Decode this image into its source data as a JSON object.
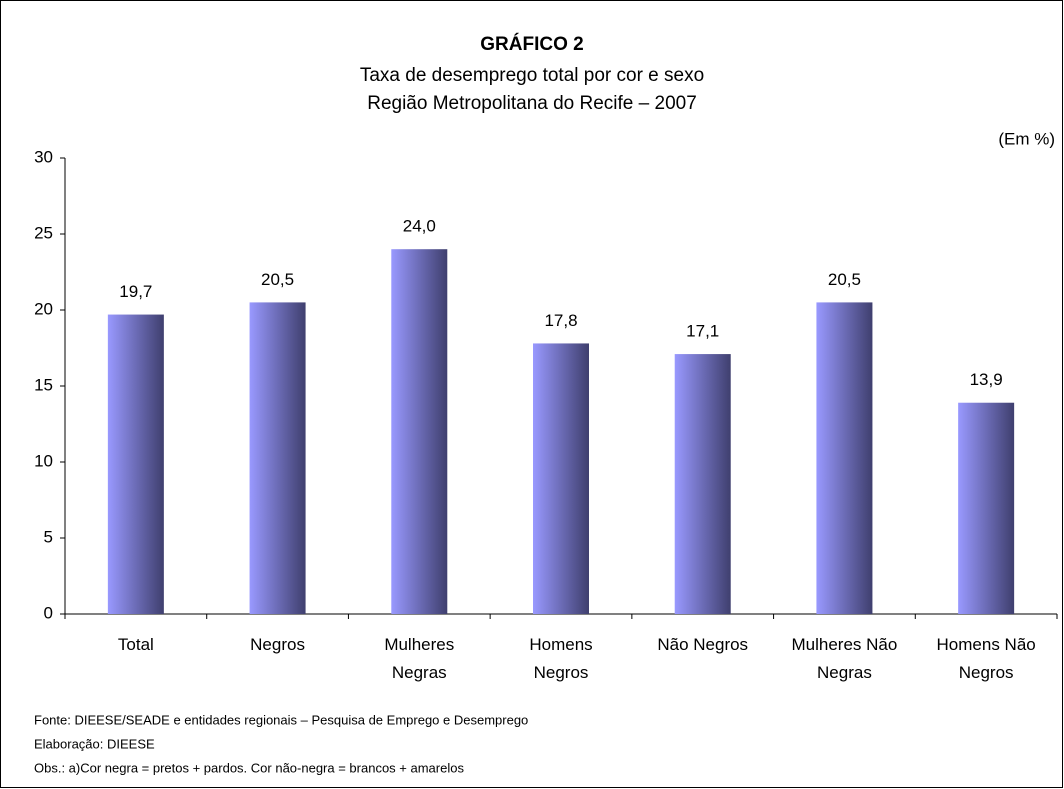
{
  "chart_data": {
    "type": "bar",
    "title": "GRÁFICO 2",
    "subtitle": [
      "Taxa de desemprego total por cor e sexo",
      "Região Metropolitana do Recife – 2007"
    ],
    "unit_label": "(Em %)",
    "categories": [
      "Total",
      "Negros",
      "Mulheres\nNegras",
      "Homens\nNegros",
      "Não Negros",
      "Mulheres Não\nNegras",
      "Homens Não\nNegros"
    ],
    "values": [
      19.7,
      20.5,
      24.0,
      17.8,
      17.1,
      20.5,
      13.9
    ],
    "value_labels": [
      "19,7",
      "20,5",
      "24,0",
      "17,8",
      "17,1",
      "20,5",
      "13,9"
    ],
    "color": "#9999ff",
    "ylim": [
      0,
      30
    ],
    "yticks": [
      0,
      5,
      10,
      15,
      20,
      25,
      30
    ],
    "grid": false,
    "notes": [
      "Fonte: DIEESE/SEADE e entidades regionais – Pesquisa de Emprego e Desemprego",
      "Elaboração: DIEESE",
      "Obs.: a)Cor negra = pretos + pardos. Cor não-negra = brancos + amarelos"
    ]
  }
}
